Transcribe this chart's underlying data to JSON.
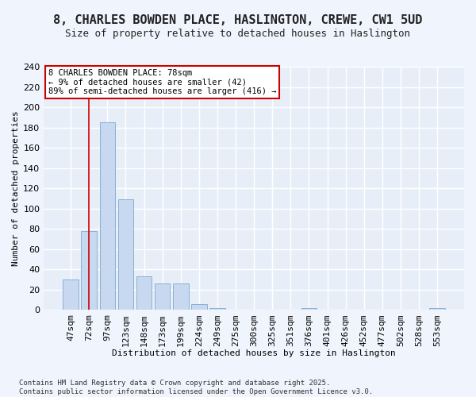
{
  "title_line1": "8, CHARLES BOWDEN PLACE, HASLINGTON, CREWE, CW1 5UD",
  "title_line2": "Size of property relative to detached houses in Haslington",
  "xlabel": "Distribution of detached houses by size in Haslington",
  "ylabel": "Number of detached properties",
  "categories": [
    "47sqm",
    "72sqm",
    "97sqm",
    "123sqm",
    "148sqm",
    "173sqm",
    "199sqm",
    "224sqm",
    "249sqm",
    "275sqm",
    "300sqm",
    "325sqm",
    "351sqm",
    "376sqm",
    "401sqm",
    "426sqm",
    "452sqm",
    "477sqm",
    "502sqm",
    "528sqm",
    "553sqm"
  ],
  "values": [
    30,
    78,
    185,
    109,
    33,
    26,
    26,
    6,
    2,
    0,
    0,
    0,
    0,
    2,
    0,
    0,
    0,
    0,
    0,
    0,
    2
  ],
  "bar_color": "#c8d8f0",
  "bar_edge_color": "#7aaad0",
  "highlight_bar_index": 1,
  "highlight_line_color": "#cc0000",
  "annotation_text": "8 CHARLES BOWDEN PLACE: 78sqm\n← 9% of detached houses are smaller (42)\n89% of semi-detached houses are larger (416) →",
  "annotation_box_edge_color": "#cc0000",
  "annotation_box_face_color": "#ffffff",
  "footer_line1": "Contains HM Land Registry data © Crown copyright and database right 2025.",
  "footer_line2": "Contains public sector information licensed under the Open Government Licence v3.0.",
  "background_color": "#f0f4fc",
  "plot_background_color": "#e8eef8",
  "grid_color": "#ffffff",
  "ylim": [
    0,
    240
  ],
  "yticks": [
    0,
    20,
    40,
    60,
    80,
    100,
    120,
    140,
    160,
    180,
    200,
    220,
    240
  ],
  "title1_fontsize": 11,
  "title2_fontsize": 9,
  "tick_fontsize": 8,
  "xlabel_fontsize": 8,
  "ylabel_fontsize": 8,
  "annotation_fontsize": 7.5,
  "footer_fontsize": 6.5
}
